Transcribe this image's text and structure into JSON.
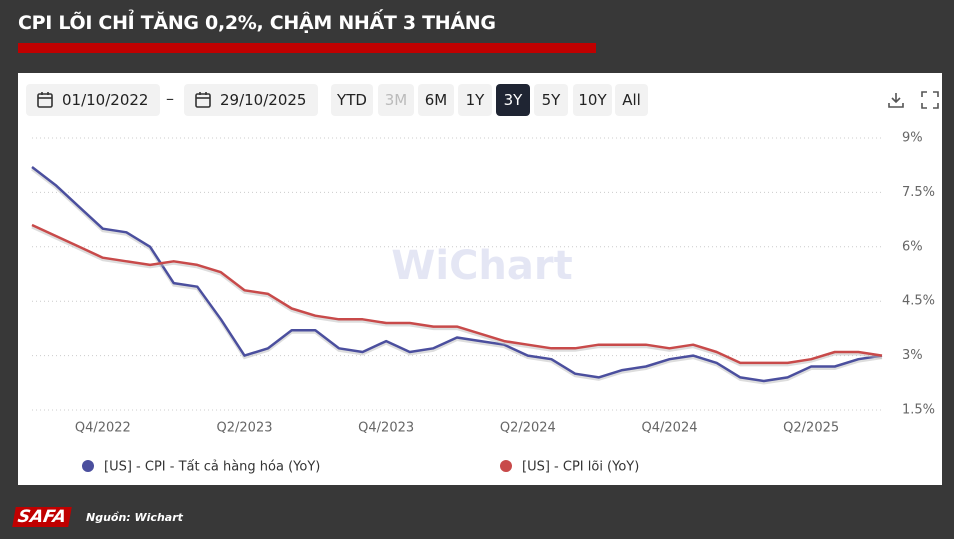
{
  "header": {
    "title": "CPI LÕI CHỈ TĂNG 0,2%, CHẬM NHẤT 3 THÁNG"
  },
  "toolbar": {
    "start_date": "01/10/2022",
    "end_date": "29/10/2025",
    "ranges": [
      "YTD",
      "3M",
      "6M",
      "1Y",
      "3Y",
      "5Y",
      "10Y",
      "All"
    ],
    "active_range": 4,
    "disabled_range": 1
  },
  "watermark": "WiChart",
  "footer": {
    "logo": "SAFA",
    "source": "Nguồn: Wichart"
  },
  "chart_data": {
    "type": "line",
    "categories": [
      null,
      null,
      null,
      "Q4/2022",
      null,
      null,
      null,
      null,
      null,
      "Q2/2023",
      null,
      null,
      null,
      null,
      null,
      "Q4/2023",
      null,
      null,
      null,
      null,
      null,
      "Q2/2024",
      null,
      null,
      null,
      null,
      null,
      "Q4/2024",
      null,
      null,
      null,
      null,
      null,
      "Q2/2025",
      null,
      null,
      null
    ],
    "series": [
      {
        "name": "[US] - CPI - Tất cả hàng hóa (YoY)",
        "color": "#4b4f9e",
        "values": [
          8.2,
          7.7,
          7.1,
          6.5,
          6.4,
          6.0,
          5.0,
          4.9,
          4.0,
          3.0,
          3.2,
          3.7,
          3.7,
          3.2,
          3.1,
          3.4,
          3.1,
          3.2,
          3.5,
          3.4,
          3.3,
          3.0,
          2.9,
          2.5,
          2.4,
          2.6,
          2.7,
          2.9,
          3.0,
          2.8,
          2.4,
          2.3,
          2.4,
          2.7,
          2.7,
          2.9,
          3.0
        ]
      },
      {
        "name": "[US] - CPI lõi (YoY)",
        "color": "#c84a4a",
        "values": [
          6.6,
          6.3,
          6.0,
          5.7,
          5.6,
          5.5,
          5.6,
          5.5,
          5.3,
          4.8,
          4.7,
          4.3,
          4.1,
          4.0,
          4.0,
          3.9,
          3.9,
          3.8,
          3.8,
          3.6,
          3.4,
          3.3,
          3.2,
          3.2,
          3.3,
          3.3,
          3.3,
          3.2,
          3.3,
          3.1,
          2.8,
          2.8,
          2.8,
          2.9,
          3.1,
          3.1,
          3.0
        ]
      }
    ],
    "ylim": [
      1.5,
      9
    ],
    "yticks": [
      {
        "value": 1.5,
        "label": "1.5%"
      },
      {
        "value": 3,
        "label": "3%"
      },
      {
        "value": 4.5,
        "label": "4.5%"
      },
      {
        "value": 6,
        "label": "6%"
      },
      {
        "value": 7.5,
        "label": "7.5%"
      },
      {
        "value": 9,
        "label": "9%"
      }
    ],
    "grid": true,
    "legend": "bottom"
  }
}
